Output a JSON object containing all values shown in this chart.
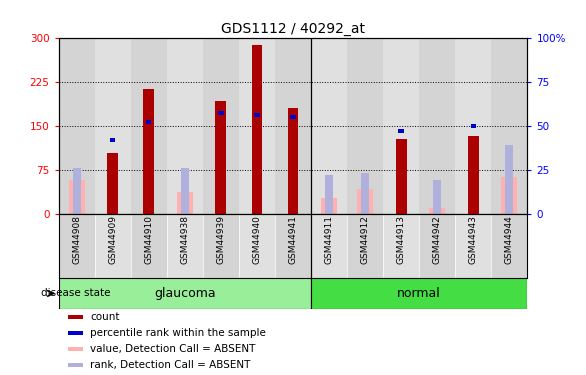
{
  "title": "GDS1112 / 40292_at",
  "samples": [
    "GSM44908",
    "GSM44909",
    "GSM44910",
    "GSM44938",
    "GSM44939",
    "GSM44940",
    "GSM44941",
    "GSM44911",
    "GSM44912",
    "GSM44913",
    "GSM44942",
    "GSM44943",
    "GSM44944"
  ],
  "groups": [
    "glaucoma",
    "glaucoma",
    "glaucoma",
    "glaucoma",
    "glaucoma",
    "glaucoma",
    "glaucoma",
    "normal",
    "normal",
    "normal",
    "normal",
    "normal",
    "normal"
  ],
  "count_values": [
    0,
    103,
    212,
    0,
    192,
    288,
    180,
    0,
    0,
    128,
    0,
    133,
    0
  ],
  "rank_values": [
    0,
    42,
    52,
    0,
    57,
    56,
    55,
    0,
    0,
    47,
    0,
    50,
    0
  ],
  "absent_value": [
    58,
    0,
    0,
    37,
    0,
    0,
    0,
    27,
    42,
    0,
    9,
    0,
    62
  ],
  "absent_rank": [
    26,
    0,
    0,
    26,
    0,
    0,
    0,
    22,
    23,
    0,
    19,
    0,
    0
  ],
  "absent_rank_13": [
    0,
    0,
    0,
    0,
    0,
    0,
    0,
    0,
    0,
    0,
    0,
    0,
    39
  ],
  "count_color": "#aa0000",
  "rank_color": "#0000cc",
  "absent_value_color": "#ffb0b0",
  "absent_rank_color": "#b0b0dd",
  "glaucoma_color": "#99ee99",
  "normal_color": "#44dd44",
  "left_ylim": [
    0,
    300
  ],
  "right_ylim": [
    0,
    100
  ],
  "left_yticks": [
    0,
    75,
    150,
    225,
    300
  ],
  "right_yticks": [
    0,
    25,
    50,
    75,
    100
  ],
  "right_yticklabels": [
    "0",
    "25",
    "50",
    "75",
    "100%"
  ],
  "background_color": "#ffffff",
  "legend_entries": [
    "count",
    "percentile rank within the sample",
    "value, Detection Call = ABSENT",
    "rank, Detection Call = ABSENT"
  ],
  "legend_colors": [
    "#aa0000",
    "#0000cc",
    "#ffb0b0",
    "#b0b0dd"
  ]
}
